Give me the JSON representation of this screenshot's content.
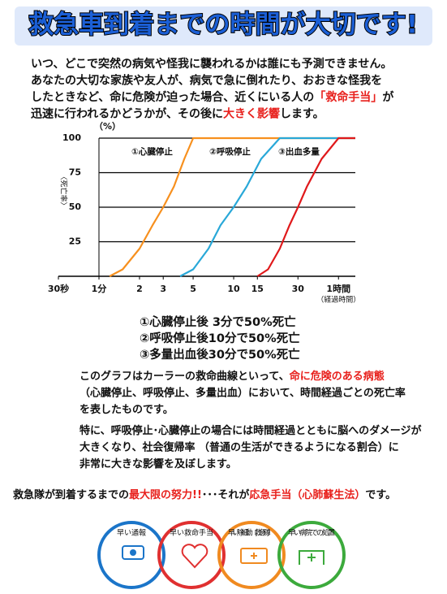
{
  "title": "救急車到着までの時間が大切です!",
  "intro": [
    [
      {
        "text": "いつ、どこで突然の病気や怪我に襲われるかは誰にも予測できません。"
      }
    ],
    [
      {
        "text": "あなたの大切な家族や友人が、病気で急に倒れたり、おおきな怪我を"
      }
    ],
    [
      {
        "text": "したときなど、命に危険が迫った場合、近くにいる人の"
      },
      {
        "text": "「救命手当」",
        "color": "#e8201c"
      },
      {
        "text": "が"
      }
    ],
    [
      {
        "text": "迅速に行われるかどうかが、その後に"
      },
      {
        "text": "大きく影響",
        "color": "#e8201c"
      },
      {
        "text": "します。"
      }
    ]
  ],
  "chart_data": {
    "type": "line",
    "x_log": true,
    "y_unit": "（%）",
    "y_label": "〈死亡率〉",
    "x_label": "（経過時間）",
    "xlim": [
      0.5,
      80
    ],
    "ylim": [
      0,
      100
    ],
    "xticks": [
      {
        "value": 0.5,
        "label": "30秒"
      },
      {
        "value": 1,
        "label": "1分"
      },
      2,
      3,
      5,
      10,
      15,
      30,
      {
        "value": 60,
        "label": "1時間"
      }
    ],
    "yticks": [
      25,
      50,
      75,
      100
    ],
    "grid": true,
    "series": [
      {
        "name": "①心臓停止",
        "color": "#f7901e",
        "x": [
          1.2,
          1.5,
          2,
          2.5,
          3,
          3.6,
          4.3,
          5,
          80
        ],
        "values": [
          0,
          5,
          20,
          37,
          50,
          65,
          85,
          100,
          100
        ]
      },
      {
        "name": "②呼吸停止",
        "color": "#29a8d8",
        "x": [
          4,
          5,
          6.5,
          8,
          10,
          12.5,
          16,
          22,
          80
        ],
        "values": [
          0,
          5,
          20,
          37,
          50,
          65,
          85,
          100,
          100
        ]
      },
      {
        "name": "③出血多量",
        "color": "#e0191b",
        "x": [
          15,
          18,
          22,
          26,
          30,
          35,
          45,
          60,
          80
        ],
        "values": [
          0,
          5,
          20,
          37,
          50,
          65,
          85,
          100,
          100
        ]
      }
    ]
  },
  "summary": [
    "①心臓停止後 3分で50%死亡",
    "②呼吸停止後10分で50%死亡",
    "③多量出血後30分で50%死亡"
  ],
  "explanation": [
    [
      {
        "text": "このグラフはカーラーの救命曲線といって、"
      },
      {
        "text": "命に危険のある病態",
        "color": "#e8201c"
      }
    ],
    [
      {
        "text": "（心臓停止、呼吸停止、多量出血）において、時間経過ごとの死亡率"
      }
    ],
    [
      {
        "text": "を表したものです。"
      }
    ]
  ],
  "impact": [
    [
      {
        "text": "特に、呼吸停止･心臓停止の場合には時間経過とともに脳へのダメージが"
      }
    ],
    [
      {
        "text": "大きくなり、社会復帰率 （普通の生活ができるようになる割合）に"
      }
    ],
    [
      {
        "text": "非常に大きな影響を及ぼします。"
      }
    ]
  ],
  "closing": [
    {
      "text": "救急隊が到着するまでの"
    },
    {
      "text": "最大限の努力!!",
      "color": "#e8201c"
    },
    {
      "text": "･･･それが"
    },
    {
      "text": "応急手当（心肺蘇生法）",
      "color": "#e8201c"
    },
    {
      "text": "です。"
    }
  ],
  "chain": [
    {
      "label": "早い通報",
      "color": "#1b75c9"
    },
    {
      "label": "早い救命手当",
      "color": "#e03030"
    },
    {
      "label": "早い除細動（救急隊）",
      "color": "#f08a20"
    },
    {
      "label": "早い病院での処置",
      "color": "#3caa3c"
    }
  ]
}
